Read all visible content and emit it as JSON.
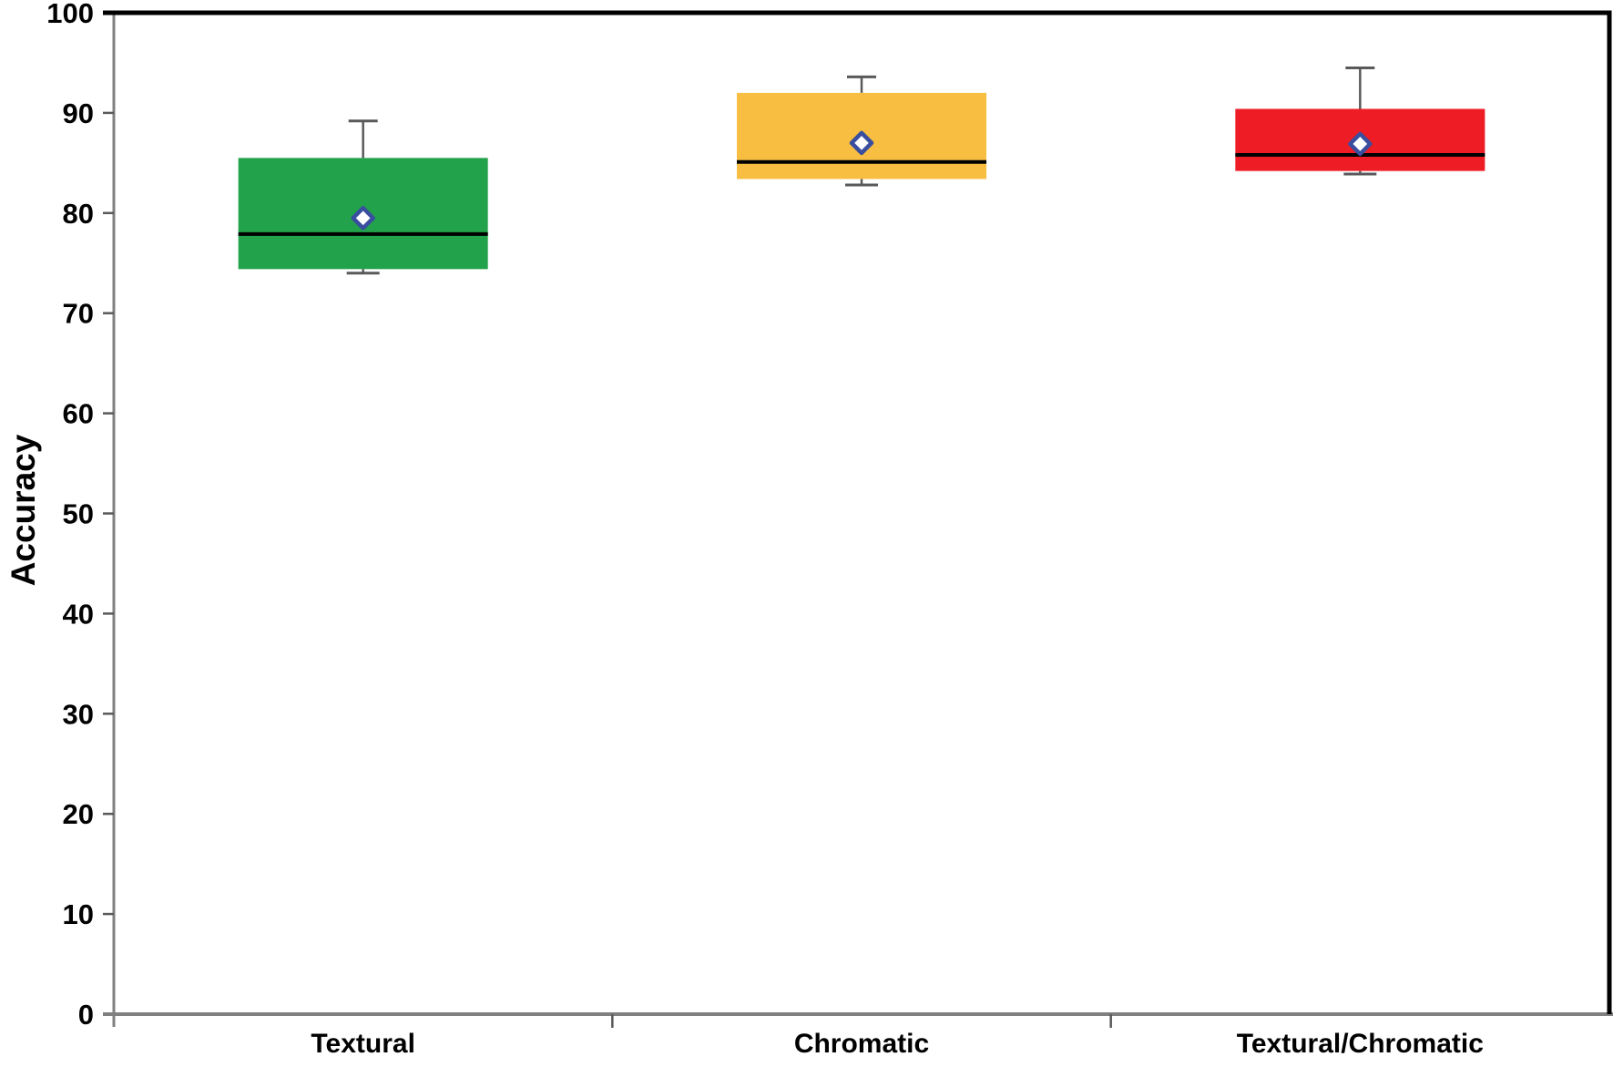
{
  "chart_data": {
    "type": "box",
    "title": "",
    "xlabel": "",
    "ylabel": "Accuracy",
    "ylim": [
      0,
      100
    ],
    "yticks": [
      0,
      10,
      20,
      30,
      40,
      50,
      60,
      70,
      80,
      90,
      100
    ],
    "grid": "off",
    "legend": "none",
    "categories": [
      "Textural",
      "Chromatic",
      "Textural/Chromatic"
    ],
    "series": [
      {
        "name": "Textural",
        "color": "#22A24B",
        "whisker_low": 74.0,
        "q1": 74.4,
        "median": 77.9,
        "mean": 79.5,
        "q3": 85.5,
        "whisker_high": 89.2
      },
      {
        "name": "Chromatic",
        "color": "#F7BE41",
        "whisker_low": 82.8,
        "q1": 83.4,
        "median": 85.1,
        "mean": 87.0,
        "q3": 92.0,
        "whisker_high": 93.6
      },
      {
        "name": "Textural/Chromatic",
        "color": "#EE1C24",
        "whisker_low": 83.9,
        "q1": 84.2,
        "median": 85.8,
        "mean": 86.9,
        "q3": 90.4,
        "whisker_high": 94.5
      }
    ],
    "mean_marker": {
      "shape": "diamond",
      "fill": "#FFFFFF",
      "stroke": "#3A4E9F"
    },
    "colors": {
      "median_line": "#000000",
      "whisker": "#595959",
      "axis": "#808080",
      "frame": "#000000",
      "tick_label": "#000000",
      "category_label": "#000000"
    }
  }
}
